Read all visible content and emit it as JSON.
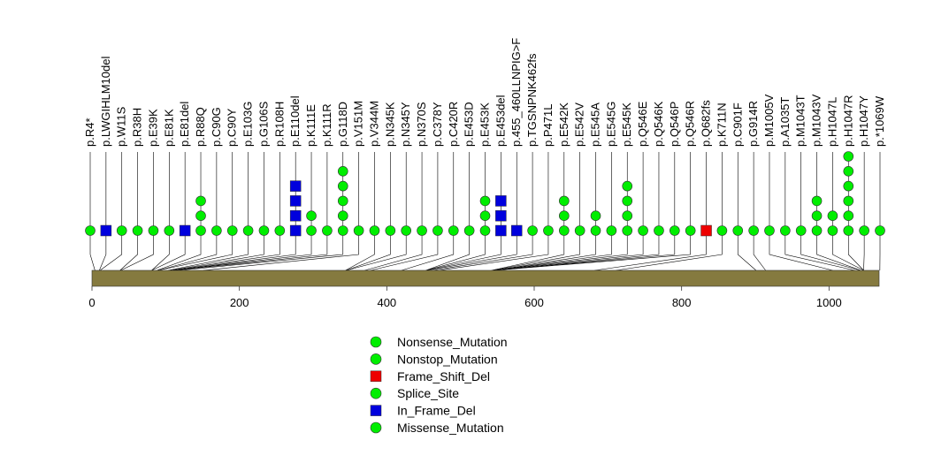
{
  "chart_data": {
    "type": "lollipop",
    "title": "",
    "xlabel": "",
    "ylabel": "",
    "protein_length": 1068,
    "xlim": [
      0,
      1068
    ],
    "axis_ticks": [
      0,
      200,
      400,
      600,
      800,
      1000
    ],
    "colors": {
      "Nonsense_Mutation": "#00ee00",
      "Nonstop_Mutation": "#00ee00",
      "Frame_Shift_Del": "#ee0000",
      "Splice_Site": "#00ee00",
      "In_Frame_Del": "#0000dd",
      "Missense_Mutation": "#00ee00",
      "domain": "#857a3f"
    },
    "legend": [
      {
        "label": "Nonsense_Mutation",
        "shape": "circle"
      },
      {
        "label": "Nonstop_Mutation",
        "shape": "circle"
      },
      {
        "label": "Frame_Shift_Del",
        "shape": "square"
      },
      {
        "label": "Splice_Site",
        "shape": "circle"
      },
      {
        "label": "In_Frame_Del",
        "shape": "square"
      },
      {
        "label": "Missense_Mutation",
        "shape": "circle"
      }
    ],
    "mutations": [
      {
        "label": "p.R4*",
        "pos": 4,
        "count": 1,
        "type": "Nonsense_Mutation"
      },
      {
        "label": "p.LWGIHLM10del",
        "pos": 10,
        "count": 1,
        "type": "In_Frame_Del"
      },
      {
        "label": "p.W11S",
        "pos": 11,
        "count": 1,
        "type": "Missense_Mutation"
      },
      {
        "label": "p.R38H",
        "pos": 38,
        "count": 1,
        "type": "Missense_Mutation"
      },
      {
        "label": "p.E39K",
        "pos": 39,
        "count": 1,
        "type": "Missense_Mutation"
      },
      {
        "label": "p.E81K",
        "pos": 81,
        "count": 1,
        "type": "Missense_Mutation"
      },
      {
        "label": "p.E81del",
        "pos": 81,
        "count": 1,
        "type": "In_Frame_Del"
      },
      {
        "label": "p.R88Q",
        "pos": 88,
        "count": 3,
        "type": "Missense_Mutation"
      },
      {
        "label": "p.C90G",
        "pos": 90,
        "count": 1,
        "type": "Missense_Mutation"
      },
      {
        "label": "p.C90Y",
        "pos": 90,
        "count": 1,
        "type": "Missense_Mutation"
      },
      {
        "label": "p.E103G",
        "pos": 103,
        "count": 1,
        "type": "Missense_Mutation"
      },
      {
        "label": "p.G106S",
        "pos": 106,
        "count": 1,
        "type": "Missense_Mutation"
      },
      {
        "label": "p.R108H",
        "pos": 108,
        "count": 1,
        "type": "Missense_Mutation"
      },
      {
        "label": "p.E110del",
        "pos": 110,
        "count": 4,
        "type": "In_Frame_Del"
      },
      {
        "label": "p.K111E",
        "pos": 111,
        "count": 2,
        "type": "Missense_Mutation"
      },
      {
        "label": "p.K111R",
        "pos": 111,
        "count": 1,
        "type": "Missense_Mutation"
      },
      {
        "label": "p.G118D",
        "pos": 118,
        "count": 5,
        "type": "Missense_Mutation"
      },
      {
        "label": "p.V151M",
        "pos": 151,
        "count": 1,
        "type": "Missense_Mutation"
      },
      {
        "label": "p.V344M",
        "pos": 344,
        "count": 1,
        "type": "Missense_Mutation"
      },
      {
        "label": "p.N345K",
        "pos": 345,
        "count": 1,
        "type": "Missense_Mutation"
      },
      {
        "label": "p.N345Y",
        "pos": 345,
        "count": 1,
        "type": "Missense_Mutation"
      },
      {
        "label": "p.N370S",
        "pos": 370,
        "count": 1,
        "type": "Missense_Mutation"
      },
      {
        "label": "p.C378Y",
        "pos": 378,
        "count": 1,
        "type": "Missense_Mutation"
      },
      {
        "label": "p.C420R",
        "pos": 420,
        "count": 1,
        "type": "Missense_Mutation"
      },
      {
        "label": "p.E453D",
        "pos": 453,
        "count": 1,
        "type": "Missense_Mutation"
      },
      {
        "label": "p.E453K",
        "pos": 453,
        "count": 3,
        "type": "Missense_Mutation"
      },
      {
        "label": "p.E453del",
        "pos": 453,
        "count": 3,
        "type": "In_Frame_Del"
      },
      {
        "label": "p.455_460LLNPIG>F",
        "pos": 455,
        "count": 1,
        "type": "In_Frame_Del"
      },
      {
        "label": "p.TGSNPNK462fs",
        "pos": 462,
        "count": 1,
        "type": "Missense_Mutation"
      },
      {
        "label": "p.P471L",
        "pos": 471,
        "count": 1,
        "type": "Missense_Mutation"
      },
      {
        "label": "p.E542K",
        "pos": 542,
        "count": 3,
        "type": "Missense_Mutation"
      },
      {
        "label": "p.E542V",
        "pos": 542,
        "count": 1,
        "type": "Missense_Mutation"
      },
      {
        "label": "p.E545A",
        "pos": 545,
        "count": 2,
        "type": "Missense_Mutation"
      },
      {
        "label": "p.E545G",
        "pos": 545,
        "count": 1,
        "type": "Missense_Mutation"
      },
      {
        "label": "p.E545K",
        "pos": 545,
        "count": 4,
        "type": "Missense_Mutation"
      },
      {
        "label": "p.Q546E",
        "pos": 546,
        "count": 1,
        "type": "Missense_Mutation"
      },
      {
        "label": "p.Q546K",
        "pos": 546,
        "count": 1,
        "type": "Missense_Mutation"
      },
      {
        "label": "p.Q546P",
        "pos": 546,
        "count": 1,
        "type": "Missense_Mutation"
      },
      {
        "label": "p.Q546R",
        "pos": 546,
        "count": 1,
        "type": "Missense_Mutation"
      },
      {
        "label": "p.Q682fs",
        "pos": 682,
        "count": 1,
        "type": "Frame_Shift_Del"
      },
      {
        "label": "p.K711N",
        "pos": 711,
        "count": 1,
        "type": "Missense_Mutation"
      },
      {
        "label": "p.C901F",
        "pos": 901,
        "count": 1,
        "type": "Missense_Mutation"
      },
      {
        "label": "p.G914R",
        "pos": 914,
        "count": 1,
        "type": "Missense_Mutation"
      },
      {
        "label": "p.M1005V",
        "pos": 1005,
        "count": 1,
        "type": "Missense_Mutation"
      },
      {
        "label": "p.A1035T",
        "pos": 1035,
        "count": 1,
        "type": "Missense_Mutation"
      },
      {
        "label": "p.M1043T",
        "pos": 1043,
        "count": 1,
        "type": "Missense_Mutation"
      },
      {
        "label": "p.M1043V",
        "pos": 1043,
        "count": 3,
        "type": "Missense_Mutation"
      },
      {
        "label": "p.H1047L",
        "pos": 1047,
        "count": 2,
        "type": "Missense_Mutation"
      },
      {
        "label": "p.H1047R",
        "pos": 1047,
        "count": 6,
        "type": "Missense_Mutation"
      },
      {
        "label": "p.H1047Y",
        "pos": 1047,
        "count": 1,
        "type": "Missense_Mutation"
      },
      {
        "label": "p.*1069W",
        "pos": 1069,
        "count": 1,
        "type": "Nonstop_Mutation"
      }
    ]
  }
}
